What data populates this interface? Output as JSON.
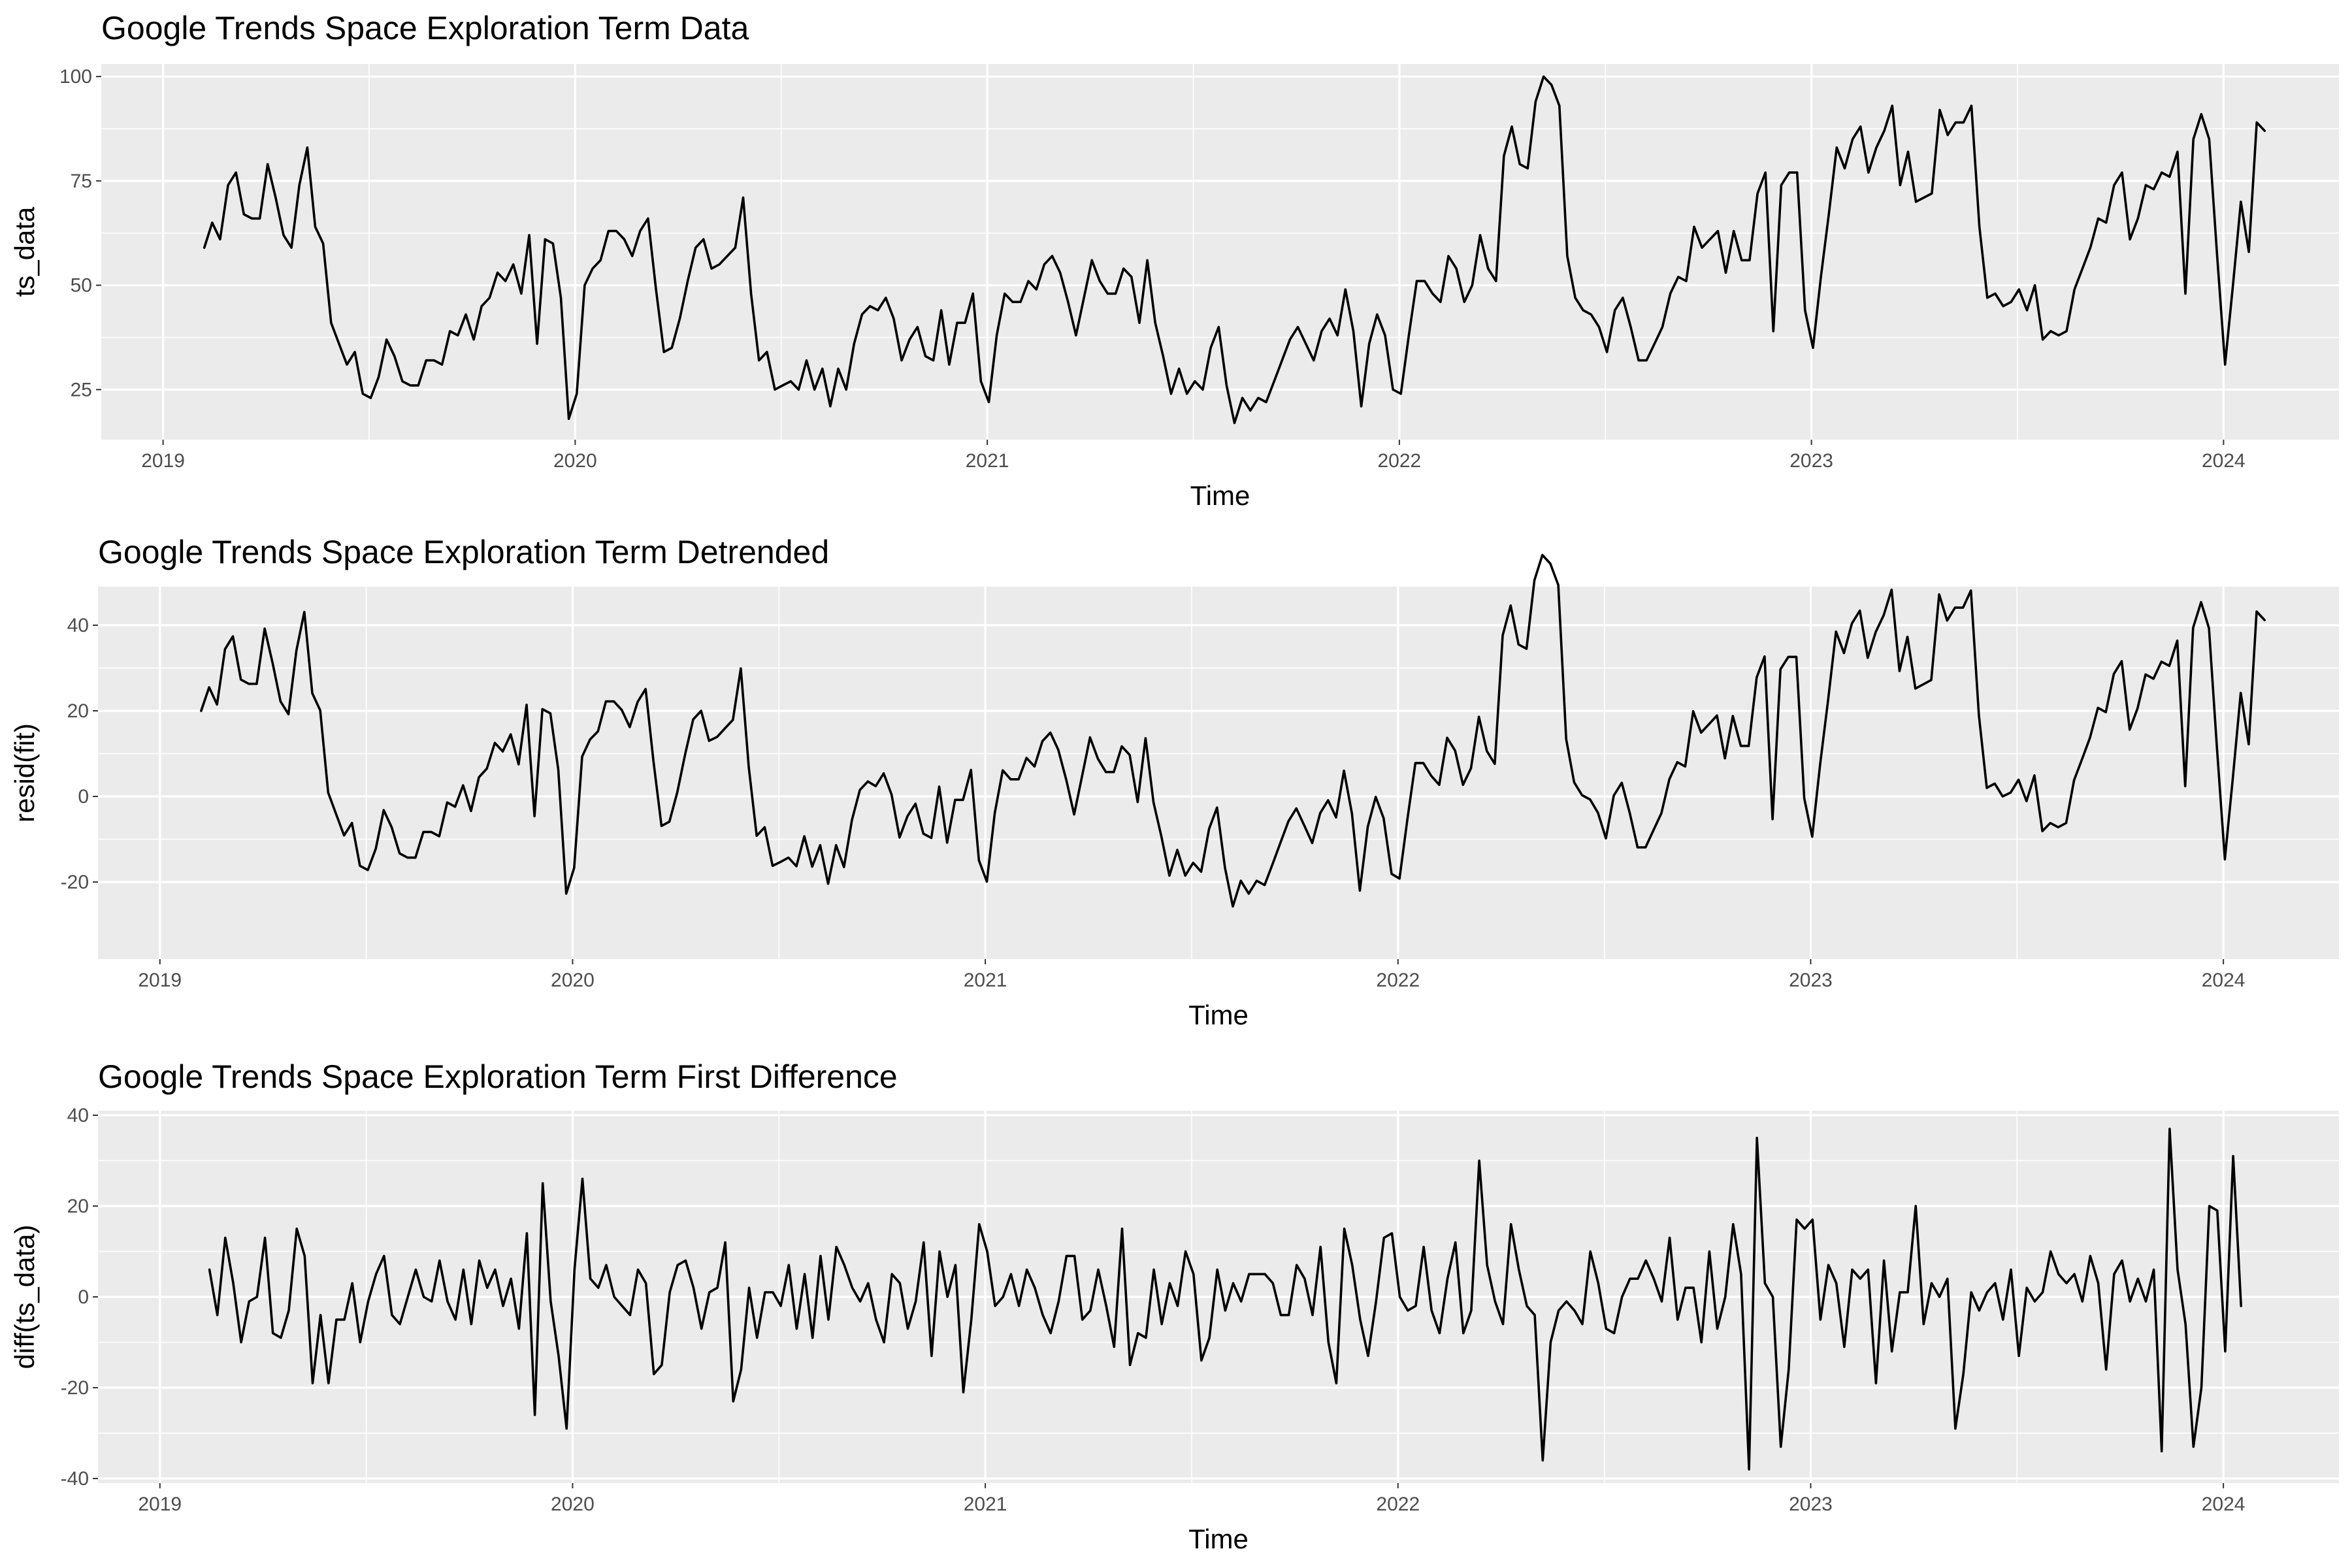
{
  "chart_data": [
    {
      "type": "line",
      "title": "Google Trends Space Exploration Term Data",
      "xlabel": "Time",
      "ylabel": "ts_data",
      "x_ticks": [
        "2019",
        "2020",
        "2021",
        "2022",
        "2023",
        "2024"
      ],
      "y_ticks": [
        25,
        50,
        75,
        100
      ],
      "xlim": [
        2018.85,
        2024.28
      ],
      "ylim": [
        13,
        103
      ],
      "grid": true,
      "x_start": 2019.1,
      "x_step": 0.01923,
      "values": [
        59,
        65,
        61,
        74,
        77,
        67,
        66,
        66,
        79,
        71,
        62,
        59,
        74,
        83,
        64,
        60,
        41,
        36,
        31,
        34,
        24,
        23,
        28,
        37,
        33,
        27,
        26,
        26,
        32,
        32,
        31,
        39,
        38,
        43,
        37,
        45,
        47,
        53,
        51,
        55,
        48,
        62,
        36,
        61,
        60,
        47,
        18,
        24,
        50,
        54,
        56,
        63,
        63,
        61,
        57,
        63,
        66,
        49,
        34,
        35,
        42,
        51,
        59,
        61,
        54,
        55,
        57,
        59,
        71,
        48,
        32,
        34,
        25,
        26,
        27,
        25,
        32,
        25,
        30,
        21,
        30,
        25,
        36,
        43,
        45,
        44,
        47,
        42,
        32,
        37,
        40,
        33,
        32,
        44,
        31,
        41,
        41,
        48,
        27,
        22,
        38,
        48,
        46,
        46,
        51,
        49,
        55,
        57,
        53,
        46,
        38,
        47,
        56,
        51,
        48,
        48,
        54,
        52,
        41,
        56,
        41,
        33,
        24,
        30,
        24,
        27,
        25,
        35,
        40,
        26,
        17,
        23,
        20,
        23,
        22,
        27,
        32,
        37,
        40,
        36,
        32,
        39,
        42,
        38,
        49,
        39,
        21,
        36,
        43,
        38,
        25,
        24,
        38,
        51,
        51,
        48,
        46,
        57,
        54,
        46,
        50,
        62,
        54,
        51,
        81,
        88,
        79,
        78,
        94,
        100,
        98,
        93,
        57,
        47,
        44,
        43,
        40,
        34,
        44,
        47,
        40,
        32,
        32,
        36,
        40,
        48,
        52,
        51,
        64,
        59,
        61,
        63,
        53,
        63,
        56,
        56,
        72,
        77,
        39,
        74,
        77,
        77,
        44,
        35,
        52,
        67,
        83,
        78,
        85,
        88,
        77,
        83,
        87,
        93,
        74,
        82,
        70,
        71,
        72,
        92,
        86,
        89,
        89,
        93,
        64,
        47,
        48,
        45,
        46,
        49,
        44,
        50,
        37,
        39,
        38,
        39,
        49,
        54,
        59,
        66,
        65,
        74,
        77,
        61,
        66,
        74,
        73,
        77,
        76,
        82,
        48,
        85,
        91,
        85,
        57,
        31,
        50,
        70,
        58,
        89,
        87
      ]
    },
    {
      "type": "line",
      "title": "Google Trends Space Exploration Term Detrended",
      "xlabel": "Time",
      "ylabel": "resid(fit)",
      "x_ticks": [
        "2019",
        "2020",
        "2021",
        "2022",
        "2023",
        "2024"
      ],
      "y_ticks": [
        -20,
        0,
        20,
        40
      ],
      "xlim": [
        2018.85,
        2024.28
      ],
      "ylim": [
        -38,
        49
      ],
      "grid": true,
      "x_start": 2019.1,
      "x_step": 0.01923,
      "values": [
        20,
        25.5,
        21.5,
        34.4,
        37.4,
        27.3,
        26.3,
        26.3,
        39.2,
        31.2,
        22.2,
        19.2,
        34.1,
        43.1,
        24.1,
        20.1,
        0.9,
        -4.1,
        -9.1,
        -6.2,
        -16.2,
        -17.2,
        -12.2,
        -3.2,
        -7.2,
        -13.3,
        -14.3,
        -14.3,
        -8.3,
        -8.3,
        -9.3,
        -1.4,
        -2.4,
        2.6,
        -3.4,
        4.5,
        6.5,
        12.5,
        10.5,
        14.5,
        7.5,
        21.4,
        -4.6,
        20.4,
        19.4,
        6.3,
        -22.7,
        -16.7,
        9.3,
        13.3,
        15.2,
        22.2,
        22.2,
        20.2,
        16.2,
        22.1,
        25.1,
        8.1,
        -6.9,
        -5.9,
        1,
        10,
        18,
        20,
        13,
        13.9,
        15.9,
        17.9,
        29.9,
        6.8,
        -9.2,
        -7.2,
        -16.2,
        -15.3,
        -14.3,
        -16.3,
        -9.3,
        -16.4,
        -11.4,
        -20.4,
        -11.4,
        -16.5,
        -5.5,
        1.5,
        3.5,
        2.4,
        5.4,
        0.4,
        -9.6,
        -4.6,
        -1.7,
        -8.7,
        -9.7,
        2.3,
        -10.8,
        -0.8,
        -0.8,
        6.2,
        -14.9,
        -19.9,
        -3.9,
        6.1,
        4,
        4,
        9,
        7,
        12.9,
        14.9,
        10.9,
        3.9,
        -4.2,
        4.8,
        13.8,
        8.8,
        5.7,
        5.7,
        11.7,
        9.7,
        -1.3,
        13.6,
        -1.4,
        -9.4,
        -18.5,
        -12.5,
        -18.5,
        -15.5,
        -17.6,
        -7.6,
        -2.6,
        -16.6,
        -25.7,
        -19.7,
        -22.7,
        -19.7,
        -20.7,
        -15.8,
        -10.8,
        -5.8,
        -2.8,
        -6.8,
        -10.9,
        -3.9,
        -0.9,
        -4.9,
        6,
        -4,
        -22,
        -7.1,
        -0.1,
        -5.1,
        -18.1,
        -19.2,
        -5.2,
        7.8,
        7.8,
        4.8,
        2.7,
        13.7,
        10.7,
        2.7,
        6.6,
        18.6,
        10.6,
        7.6,
        37.6,
        44.6,
        35.5,
        34.5,
        50.5,
        56.4,
        54.4,
        49.4,
        13.4,
        3.3,
        0.3,
        -0.7,
        -3.8,
        -9.8,
        0.2,
        3.2,
        -3.8,
        -11.9,
        -11.9,
        -7.9,
        -3.9,
        4,
        8,
        7,
        19.9,
        14.9,
        16.9,
        18.9,
        8.9,
        18.8,
        11.8,
        11.8,
        27.8,
        32.7,
        -5.3,
        29.7,
        32.6,
        32.6,
        -0.4,
        -9.4,
        7.5,
        22.5,
        38.5,
        33.5,
        40.4,
        43.4,
        32.4,
        38.4,
        42.3,
        48.3,
        29.3,
        37.3,
        25.2,
        26.2,
        27.2,
        47.2,
        41.1,
        44.1,
        44.1,
        48.1,
        19,
        2,
        3,
        0,
        0.9,
        3.9,
        -1.1,
        4.9,
        -8.1,
        -6.2,
        -7.2,
        -6.2,
        3.8,
        8.7,
        13.7,
        20.7,
        19.7,
        28.6,
        31.6,
        15.6,
        20.6,
        28.5,
        27.5,
        31.5,
        30.5,
        36.4,
        2.4,
        39.4,
        45.4,
        39.3,
        11.3,
        -14.7,
        4.3,
        24.2,
        12.2,
        43.2,
        41.2
      ]
    },
    {
      "type": "line",
      "title": "Google Trends Space Exploration Term First Difference",
      "xlabel": "Time",
      "ylabel": "diff(ts_data)",
      "x_ticks": [
        "2019",
        "2020",
        "2021",
        "2022",
        "2023",
        "2024"
      ],
      "y_ticks": [
        -40,
        -20,
        0,
        20,
        40
      ],
      "xlim": [
        2018.85,
        2024.28
      ],
      "ylim": [
        -41,
        41
      ],
      "grid": true,
      "x_start": 2019.12,
      "x_step": 0.01923,
      "values": [
        6,
        -4,
        13,
        3,
        -10,
        -1,
        0,
        13,
        -8,
        -9,
        -3,
        15,
        9,
        -19,
        -4,
        -19,
        -5,
        -5,
        3,
        -10,
        -1,
        5,
        9,
        -4,
        -6,
        0,
        6,
        0,
        -1,
        8,
        -1,
        -5,
        6,
        -6,
        8,
        2,
        6,
        -2,
        4,
        -7,
        14,
        -26,
        25,
        -1,
        -13,
        -29,
        6,
        26,
        4,
        2,
        7,
        0,
        -2,
        -4,
        6,
        3,
        -17,
        -15,
        1,
        7,
        8,
        2,
        -7,
        1,
        2,
        12,
        -23,
        -16,
        2,
        -9,
        1,
        1,
        -2,
        7,
        -7,
        5,
        -9,
        9,
        -5,
        11,
        7,
        2,
        -1,
        3,
        -5,
        -10,
        5,
        3,
        -7,
        -1,
        12,
        -13,
        10,
        0,
        7,
        -21,
        -5,
        16,
        10,
        -2,
        0,
        5,
        -2,
        6,
        2,
        -4,
        -8,
        -1,
        9,
        9,
        -5,
        -3,
        6,
        -2,
        -11,
        15,
        -15,
        -8,
        -9,
        6,
        -6,
        3,
        -2,
        10,
        5,
        -14,
        -9,
        6,
        -3,
        3,
        -1,
        5,
        5,
        5,
        3,
        -4,
        -4,
        7,
        4,
        -4,
        11,
        -10,
        -19,
        15,
        7,
        -5,
        -13,
        -1,
        13,
        14,
        0,
        -3,
        -2,
        11,
        -3,
        -8,
        4,
        12,
        -8,
        -3,
        30,
        7,
        -1,
        -6,
        16,
        6,
        -2,
        -4,
        -36,
        -10,
        -3,
        -1,
        -3,
        -6,
        10,
        3,
        -7,
        -8,
        0,
        4,
        4,
        8,
        4,
        -1,
        13,
        -5,
        2,
        2,
        -10,
        10,
        -7,
        0,
        16,
        5,
        -38,
        35,
        3,
        0,
        -33,
        -16,
        17,
        15,
        17,
        -5,
        7,
        3,
        -11,
        6,
        4,
        6,
        -19,
        8,
        -12,
        1,
        1,
        20,
        -6,
        3,
        0,
        4,
        -29,
        -17,
        1,
        -3,
        1,
        3,
        -5,
        6,
        -13,
        2,
        -1,
        1,
        10,
        5,
        3,
        5,
        -1,
        9,
        3,
        -16,
        5,
        8,
        -1,
        4,
        -1,
        6,
        -34,
        37,
        6,
        -6,
        -33,
        -20,
        20,
        19,
        -12,
        31,
        -2
      ]
    }
  ]
}
